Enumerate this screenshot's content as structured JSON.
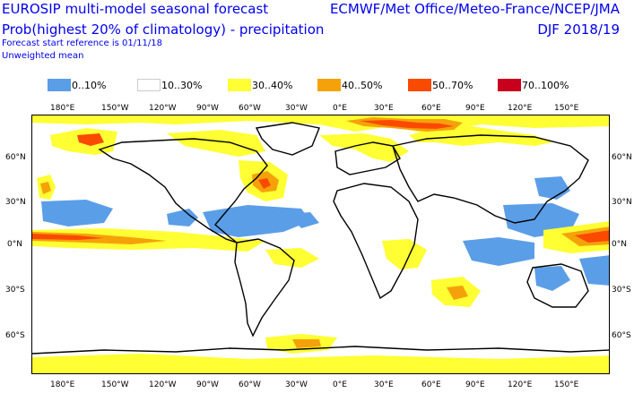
{
  "header": {
    "title_line1": "EUROSIP multi-model seasonal forecast",
    "title_line2": "Prob(highest 20% of climatology) - precipitation",
    "forecast_start": "Forecast start reference is 01/11/18",
    "weighting": "Unweighted mean",
    "centres": "ECMWF/Met Office/Meteo-France/NCEP/JMA",
    "season": "DJF 2018/19"
  },
  "legend": [
    {
      "label": "0..10%",
      "color": "#5b9ee8"
    },
    {
      "label": "10..30%",
      "color": "#ffffff"
    },
    {
      "label": "30..40%",
      "color": "#ffff33"
    },
    {
      "label": "40..50%",
      "color": "#f5a20a"
    },
    {
      "label": "50..70%",
      "color": "#fa4a00"
    },
    {
      "label": "70..100%",
      "color": "#c8001e"
    }
  ],
  "axes": {
    "top_ticks": [
      "180°E",
      "150°W",
      "120°W",
      "90°W",
      "60°W",
      "30°W",
      "0°E",
      "30°E",
      "60°E",
      "90°E",
      "120°E",
      "150°E"
    ],
    "bottom_ticks": [
      "180°E",
      "150°W",
      "120°W",
      "90°W",
      "60°W",
      "30°W",
      "0°E",
      "30°E",
      "60°E",
      "90°E",
      "120°E",
      "150°E"
    ],
    "left_ticks": [
      "60°N",
      "30°N",
      "0°N",
      "30°S",
      "60°S"
    ],
    "right_ticks": [
      "60°N",
      "30°N",
      "0°N",
      "30°S",
      "60°S"
    ]
  }
}
